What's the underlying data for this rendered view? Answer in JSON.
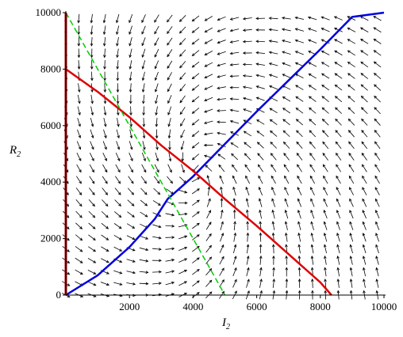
{
  "chart_data": {
    "type": "line",
    "xlabel": "I",
    "xlabel_sub": "2",
    "ylabel": "R",
    "ylabel_sub": "2",
    "xlim": [
      0,
      10000
    ],
    "ylim": [
      0,
      10000
    ],
    "x_ticks": [
      2000,
      4000,
      6000,
      8000,
      10000
    ],
    "x_tick_labels": [
      "2000",
      "4000",
      "6000",
      "8000",
      "10000"
    ],
    "y_ticks": [
      0,
      2000,
      4000,
      6000,
      8000,
      10000
    ],
    "y_tick_labels": [
      "0",
      "2000",
      "4000",
      "6000",
      "8000",
      "10000"
    ],
    "grid": false,
    "direction_field": {
      "x_start": 0,
      "x_step": 408.16,
      "x_count": 25,
      "y_start": 0,
      "y_step": 408.16,
      "y_count": 25,
      "equilibrium": [
        4100,
        4300
      ],
      "arrow_color": "#000000"
    },
    "series": [
      {
        "color": "#0000dd",
        "style": "solid",
        "x": [
          0,
          1000,
          2000,
          2800,
          3200,
          3500,
          4000,
          5000,
          6000,
          7000,
          8000,
          9000,
          10000
        ],
        "y": [
          0,
          700,
          1700,
          2700,
          3400,
          3700,
          4200,
          5350,
          6500,
          7600,
          8700,
          9850,
          10000
        ]
      },
      {
        "color": "#dd0000",
        "style": "solid",
        "x": [
          0,
          1000,
          2000,
          3000,
          4000,
          5000,
          6000,
          7000,
          8000,
          8350
        ],
        "y": [
          8000,
          7200,
          6300,
          5300,
          4400,
          3400,
          2450,
          1450,
          450,
          0
        ]
      },
      {
        "color": "#00cc00",
        "style": "dashed",
        "x": [
          0,
          5000
        ],
        "y": [
          10000,
          0
        ]
      },
      {
        "color": "#aa0000",
        "style": "solid",
        "x": [
          0,
          0
        ],
        "y": [
          0,
          10000
        ]
      }
    ]
  }
}
